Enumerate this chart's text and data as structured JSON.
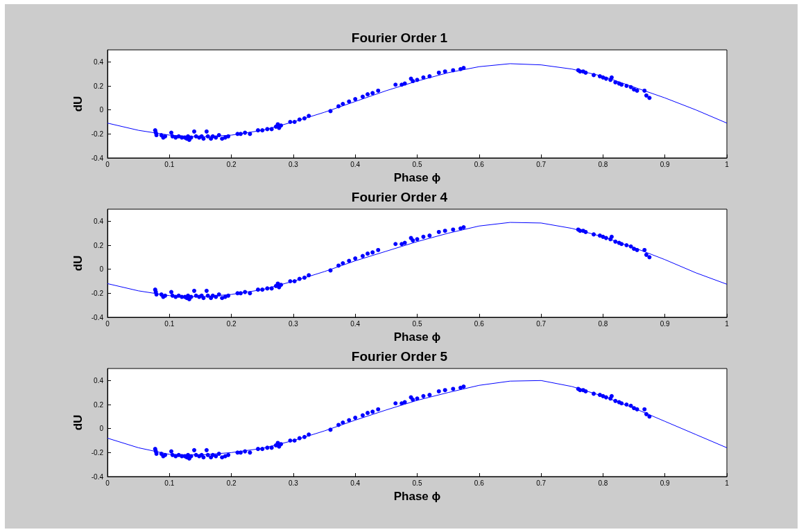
{
  "chart_data": [
    {
      "type": "scatter",
      "title": "Fourier Order 1",
      "xlabel": "Phase ϕ",
      "ylabel": "dU",
      "xlim": [
        0,
        1
      ],
      "ylim": [
        -0.4,
        0.5
      ],
      "xticks": [
        0,
        0.1,
        0.2,
        0.3,
        0.4,
        0.5,
        0.6,
        0.7,
        0.8,
        0.9,
        1
      ],
      "yticks": [
        -0.4,
        -0.2,
        0,
        0.2,
        0.4
      ],
      "grid": false,
      "marker": "circle",
      "series": [
        {
          "type": "scatter",
          "color": "#0000ff",
          "x": [
            0.077,
            0.078,
            0.079,
            0.087,
            0.09,
            0.093,
            0.103,
            0.105,
            0.11,
            0.115,
            0.12,
            0.125,
            0.128,
            0.13,
            0.132,
            0.135,
            0.14,
            0.143,
            0.148,
            0.152,
            0.155,
            0.16,
            0.162,
            0.167,
            0.17,
            0.175,
            0.18,
            0.185,
            0.19,
            0.195,
            0.21,
            0.215,
            0.222,
            0.23,
            0.243,
            0.25,
            0.258,
            0.265,
            0.272,
            0.275,
            0.277,
            0.28,
            0.295,
            0.302,
            0.31,
            0.318,
            0.325,
            0.36,
            0.373,
            0.38,
            0.39,
            0.4,
            0.412,
            0.42,
            0.428,
            0.437,
            0.465,
            0.475,
            0.48,
            0.49,
            0.493,
            0.5,
            0.51,
            0.52,
            0.535,
            0.545,
            0.558,
            0.57,
            0.575,
            0.76,
            0.763,
            0.768,
            0.772,
            0.785,
            0.795,
            0.8,
            0.805,
            0.812,
            0.814,
            0.82,
            0.826,
            0.83,
            0.838,
            0.845,
            0.85,
            0.855,
            0.867,
            0.87,
            0.875
          ],
          "values": [
            -0.17,
            -0.19,
            -0.21,
            -0.21,
            -0.23,
            -0.22,
            -0.19,
            -0.22,
            -0.23,
            -0.22,
            -0.23,
            -0.23,
            -0.24,
            -0.22,
            -0.25,
            -0.23,
            -0.18,
            -0.22,
            -0.23,
            -0.22,
            -0.24,
            -0.18,
            -0.22,
            -0.24,
            -0.22,
            -0.23,
            -0.21,
            -0.24,
            -0.23,
            -0.22,
            -0.2,
            -0.2,
            -0.19,
            -0.2,
            -0.17,
            -0.17,
            -0.16,
            -0.16,
            -0.14,
            -0.12,
            -0.15,
            -0.13,
            -0.1,
            -0.1,
            -0.08,
            -0.07,
            -0.05,
            -0.01,
            0.03,
            0.05,
            0.07,
            0.09,
            0.11,
            0.13,
            0.14,
            0.16,
            0.21,
            0.21,
            0.22,
            0.26,
            0.24,
            0.25,
            0.27,
            0.28,
            0.31,
            0.32,
            0.33,
            0.34,
            0.35,
            0.33,
            0.32,
            0.32,
            0.31,
            0.29,
            0.28,
            0.27,
            0.26,
            0.25,
            0.27,
            0.23,
            0.22,
            0.21,
            0.2,
            0.19,
            0.17,
            0.16,
            0.16,
            0.12,
            0.1
          ]
        },
        {
          "type": "line",
          "color": "#0000ff",
          "marker": "none",
          "x": [
            0,
            0.05,
            0.1,
            0.15,
            0.2,
            0.25,
            0.3,
            0.35,
            0.4,
            0.45,
            0.5,
            0.55,
            0.6,
            0.65,
            0.7,
            0.75,
            0.8,
            0.85,
            0.9,
            0.95,
            1
          ],
          "values": [
            -0.11,
            -0.17,
            -0.21,
            -0.225,
            -0.21,
            -0.17,
            -0.1,
            -0.02,
            0.07,
            0.16,
            0.24,
            0.31,
            0.36,
            0.385,
            0.375,
            0.34,
            0.28,
            0.19,
            0.1,
            0,
            -0.11
          ]
        }
      ]
    },
    {
      "type": "scatter",
      "title": "Fourier Order 4",
      "xlabel": "Phase ϕ",
      "ylabel": "dU",
      "xlim": [
        0,
        1
      ],
      "ylim": [
        -0.4,
        0.5
      ],
      "xticks": [
        0,
        0.1,
        0.2,
        0.3,
        0.4,
        0.5,
        0.6,
        0.7,
        0.8,
        0.9,
        1
      ],
      "yticks": [
        -0.4,
        -0.2,
        0,
        0.2,
        0.4
      ],
      "grid": false,
      "marker": "circle",
      "series": [
        {
          "type": "scatter",
          "color": "#0000ff",
          "x": [
            0.077,
            0.078,
            0.079,
            0.087,
            0.09,
            0.093,
            0.103,
            0.105,
            0.11,
            0.115,
            0.12,
            0.125,
            0.128,
            0.13,
            0.132,
            0.135,
            0.14,
            0.143,
            0.148,
            0.152,
            0.155,
            0.16,
            0.162,
            0.167,
            0.17,
            0.175,
            0.18,
            0.185,
            0.19,
            0.195,
            0.21,
            0.215,
            0.222,
            0.23,
            0.243,
            0.25,
            0.258,
            0.265,
            0.272,
            0.275,
            0.277,
            0.28,
            0.295,
            0.302,
            0.31,
            0.318,
            0.325,
            0.36,
            0.373,
            0.38,
            0.39,
            0.4,
            0.412,
            0.42,
            0.428,
            0.437,
            0.465,
            0.475,
            0.48,
            0.49,
            0.493,
            0.5,
            0.51,
            0.52,
            0.535,
            0.545,
            0.558,
            0.57,
            0.575,
            0.76,
            0.763,
            0.768,
            0.772,
            0.785,
            0.795,
            0.8,
            0.805,
            0.812,
            0.814,
            0.82,
            0.826,
            0.83,
            0.838,
            0.845,
            0.85,
            0.855,
            0.867,
            0.87,
            0.875
          ],
          "values": [
            -0.17,
            -0.19,
            -0.21,
            -0.21,
            -0.23,
            -0.22,
            -0.19,
            -0.22,
            -0.23,
            -0.22,
            -0.23,
            -0.23,
            -0.24,
            -0.22,
            -0.25,
            -0.23,
            -0.18,
            -0.22,
            -0.23,
            -0.22,
            -0.24,
            -0.18,
            -0.22,
            -0.24,
            -0.22,
            -0.23,
            -0.21,
            -0.24,
            -0.23,
            -0.22,
            -0.2,
            -0.2,
            -0.19,
            -0.2,
            -0.17,
            -0.17,
            -0.16,
            -0.16,
            -0.14,
            -0.12,
            -0.15,
            -0.13,
            -0.1,
            -0.1,
            -0.08,
            -0.07,
            -0.05,
            -0.01,
            0.03,
            0.05,
            0.07,
            0.09,
            0.11,
            0.13,
            0.14,
            0.16,
            0.21,
            0.21,
            0.22,
            0.26,
            0.24,
            0.25,
            0.27,
            0.28,
            0.31,
            0.32,
            0.33,
            0.34,
            0.35,
            0.33,
            0.32,
            0.32,
            0.31,
            0.29,
            0.28,
            0.27,
            0.26,
            0.25,
            0.27,
            0.23,
            0.22,
            0.21,
            0.2,
            0.19,
            0.17,
            0.16,
            0.16,
            0.12,
            0.1
          ]
        },
        {
          "type": "line",
          "color": "#0000ff",
          "marker": "none",
          "x": [
            0,
            0.05,
            0.1,
            0.15,
            0.2,
            0.25,
            0.3,
            0.35,
            0.4,
            0.45,
            0.5,
            0.55,
            0.6,
            0.65,
            0.7,
            0.75,
            0.8,
            0.85,
            0.9,
            0.95,
            1
          ],
          "values": [
            -0.12,
            -0.18,
            -0.22,
            -0.23,
            -0.21,
            -0.17,
            -0.1,
            -0.02,
            0.07,
            0.15,
            0.23,
            0.3,
            0.36,
            0.39,
            0.385,
            0.34,
            0.27,
            0.18,
            0.08,
            -0.03,
            -0.125
          ]
        }
      ]
    },
    {
      "type": "scatter",
      "title": "Fourier Order 5",
      "xlabel": "Phase ϕ",
      "ylabel": "dU",
      "xlim": [
        0,
        1
      ],
      "ylim": [
        -0.4,
        0.5
      ],
      "xticks": [
        0,
        0.1,
        0.2,
        0.3,
        0.4,
        0.5,
        0.6,
        0.7,
        0.8,
        0.9,
        1
      ],
      "yticks": [
        -0.4,
        -0.2,
        0,
        0.2,
        0.4
      ],
      "grid": false,
      "marker": "circle",
      "series": [
        {
          "type": "scatter",
          "color": "#0000ff",
          "x": [
            0.077,
            0.078,
            0.079,
            0.087,
            0.09,
            0.093,
            0.103,
            0.105,
            0.11,
            0.115,
            0.12,
            0.125,
            0.128,
            0.13,
            0.132,
            0.135,
            0.14,
            0.143,
            0.148,
            0.152,
            0.155,
            0.16,
            0.162,
            0.167,
            0.17,
            0.175,
            0.18,
            0.185,
            0.19,
            0.195,
            0.21,
            0.215,
            0.222,
            0.23,
            0.243,
            0.25,
            0.258,
            0.265,
            0.272,
            0.275,
            0.277,
            0.28,
            0.295,
            0.302,
            0.31,
            0.318,
            0.325,
            0.36,
            0.373,
            0.38,
            0.39,
            0.4,
            0.412,
            0.42,
            0.428,
            0.437,
            0.465,
            0.475,
            0.48,
            0.49,
            0.493,
            0.5,
            0.51,
            0.52,
            0.535,
            0.545,
            0.558,
            0.57,
            0.575,
            0.76,
            0.763,
            0.768,
            0.772,
            0.785,
            0.795,
            0.8,
            0.805,
            0.812,
            0.814,
            0.82,
            0.826,
            0.83,
            0.838,
            0.845,
            0.85,
            0.855,
            0.867,
            0.87,
            0.875
          ],
          "values": [
            -0.17,
            -0.19,
            -0.21,
            -0.21,
            -0.23,
            -0.22,
            -0.19,
            -0.22,
            -0.23,
            -0.22,
            -0.23,
            -0.23,
            -0.24,
            -0.22,
            -0.25,
            -0.23,
            -0.18,
            -0.22,
            -0.23,
            -0.22,
            -0.24,
            -0.18,
            -0.22,
            -0.24,
            -0.22,
            -0.23,
            -0.21,
            -0.24,
            -0.23,
            -0.22,
            -0.2,
            -0.2,
            -0.19,
            -0.2,
            -0.17,
            -0.17,
            -0.16,
            -0.16,
            -0.14,
            -0.12,
            -0.15,
            -0.13,
            -0.1,
            -0.1,
            -0.08,
            -0.07,
            -0.05,
            -0.01,
            0.03,
            0.05,
            0.07,
            0.09,
            0.11,
            0.13,
            0.14,
            0.16,
            0.21,
            0.21,
            0.22,
            0.26,
            0.24,
            0.25,
            0.27,
            0.28,
            0.31,
            0.32,
            0.33,
            0.34,
            0.35,
            0.33,
            0.32,
            0.32,
            0.31,
            0.29,
            0.28,
            0.27,
            0.26,
            0.25,
            0.27,
            0.23,
            0.22,
            0.21,
            0.2,
            0.19,
            0.17,
            0.16,
            0.16,
            0.12,
            0.1
          ]
        },
        {
          "type": "line",
          "color": "#0000ff",
          "marker": "none",
          "x": [
            0,
            0.05,
            0.1,
            0.15,
            0.2,
            0.25,
            0.3,
            0.35,
            0.4,
            0.45,
            0.5,
            0.55,
            0.6,
            0.65,
            0.7,
            0.75,
            0.8,
            0.85,
            0.9,
            0.95,
            1
          ],
          "values": [
            -0.08,
            -0.16,
            -0.215,
            -0.22,
            -0.2,
            -0.165,
            -0.1,
            -0.02,
            0.07,
            0.155,
            0.235,
            0.3,
            0.36,
            0.395,
            0.4,
            0.35,
            0.27,
            0.17,
            0.06,
            -0.05,
            -0.16
          ]
        }
      ]
    }
  ]
}
